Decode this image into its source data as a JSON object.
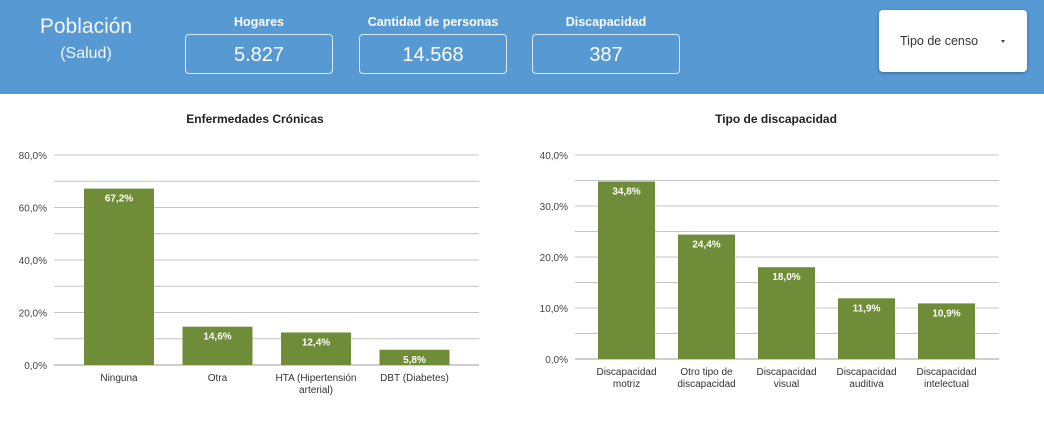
{
  "header": {
    "title": "Población",
    "subtitle": "(Salud)",
    "kpis": [
      {
        "label": "Hogares",
        "value": "5.827"
      },
      {
        "label": "Cantidad de personas",
        "value": "14.568"
      },
      {
        "label": "Discapacidad",
        "value": "387"
      }
    ],
    "filter": {
      "label": "Tipo de censo",
      "icon": "caret-down-icon"
    }
  },
  "colors": {
    "header_bg": "#5699d3",
    "bar": "#6f8c39"
  },
  "chart_data": [
    {
      "type": "bar",
      "title": "Enfermedades Crónicas",
      "categories": [
        "Ninguna",
        "Otra",
        "HTA (Hipertensión arterial)",
        "DBT (Diabetes)"
      ],
      "category_lines": [
        [
          "Ninguna"
        ],
        [
          "Otra"
        ],
        [
          "HTA (Hipertensión",
          "arterial)"
        ],
        [
          "DBT (Diabetes)"
        ]
      ],
      "values": [
        67.2,
        14.6,
        12.4,
        5.8
      ],
      "value_labels": [
        "67,2%",
        "14,6%",
        "12,4%",
        "5,8%"
      ],
      "ylim": [
        0,
        80
      ],
      "yticks": [
        0,
        20,
        40,
        60,
        80
      ],
      "ytick_labels": [
        "0,0%",
        "20,0%",
        "40,0%",
        "60,0%",
        "80,0%"
      ],
      "grid": true,
      "xlabel": "",
      "ylabel": ""
    },
    {
      "type": "bar",
      "title": "Tipo de discapacidad",
      "categories": [
        "Discapacidad motriz",
        "Otro tipo de discapacidad",
        "Discapacidad visual",
        "Discapacidad auditiva",
        "Discapacidad intelectual"
      ],
      "category_lines": [
        [
          "Discapacidad",
          "motriz"
        ],
        [
          "Otro tipo de",
          "discapacidad"
        ],
        [
          "Discapacidad",
          "visual"
        ],
        [
          "Discapacidad",
          "auditiva"
        ],
        [
          "Discapacidad",
          "intelectual"
        ]
      ],
      "values": [
        34.8,
        24.4,
        18.0,
        11.9,
        10.9
      ],
      "value_labels": [
        "34,8%",
        "24,4%",
        "18,0%",
        "11,9%",
        "10,9%"
      ],
      "ylim": [
        0,
        40
      ],
      "yticks": [
        0,
        10,
        20,
        30,
        40
      ],
      "ytick_labels": [
        "0,0%",
        "10,0%",
        "20,0%",
        "30,0%",
        "40,0%"
      ],
      "grid": true,
      "xlabel": "",
      "ylabel": ""
    }
  ]
}
